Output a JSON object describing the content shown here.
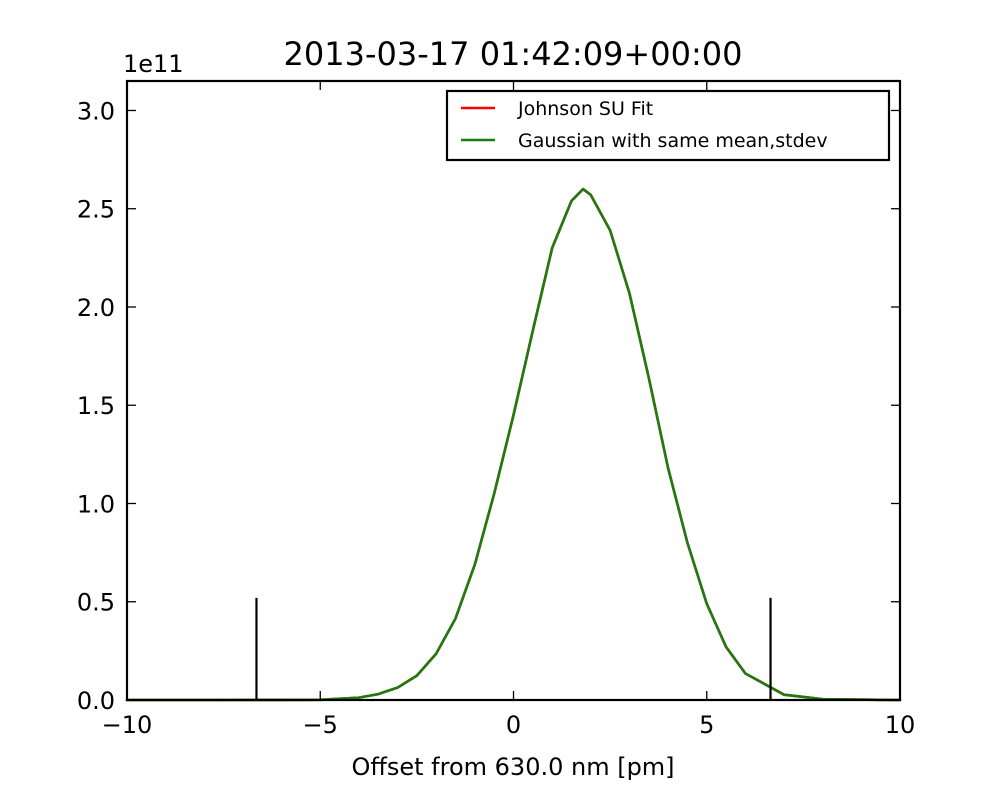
{
  "chart_data": {
    "type": "line",
    "title": "2013-03-17 01:42:09+00:00",
    "xlabel": "Offset from 630.0 nm [pm]",
    "ylabel": "",
    "y_offset_label": "1e11",
    "xlim": [
      -10,
      10
    ],
    "ylim": [
      0,
      3.15
    ],
    "y_scale_multiplier": 100000000000,
    "xticks": [
      -10,
      -5,
      0,
      5,
      10
    ],
    "xtick_labels": [
      "−10",
      "−5",
      "0",
      "5",
      "10"
    ],
    "yticks": [
      0.0,
      0.5,
      1.0,
      1.5,
      2.0,
      2.5,
      3.0
    ],
    "ytick_labels": [
      "0.0",
      "0.5",
      "1.0",
      "1.5",
      "2.0",
      "2.5",
      "3.0"
    ],
    "grid": false,
    "legend_position": "top-right",
    "series": [
      {
        "name": "Johnson SU Fit",
        "color": "#ff0000",
        "x": [
          -10,
          -8,
          -6,
          -5,
          -4,
          -3.5,
          -3,
          -2.5,
          -2,
          -1.5,
          -1,
          -0.5,
          0,
          0.5,
          1,
          1.5,
          1.8,
          2,
          2.5,
          3,
          3.5,
          4,
          4.5,
          5,
          5.5,
          6,
          7,
          8,
          10
        ],
        "y": [
          0,
          0,
          0.0001,
          0.001,
          0.012,
          0.03,
          0.063,
          0.124,
          0.236,
          0.415,
          0.69,
          1.05,
          1.45,
          1.88,
          2.3,
          2.54,
          2.6,
          2.57,
          2.39,
          2.07,
          1.64,
          1.18,
          0.8,
          0.49,
          0.27,
          0.135,
          0.027,
          0.004,
          0
        ]
      },
      {
        "name": "Gaussian with same mean,stdev",
        "color": "#1e7b12",
        "x": [
          -10,
          -8,
          -6,
          -5,
          -4,
          -3.5,
          -3,
          -2.5,
          -2,
          -1.5,
          -1,
          -0.5,
          0,
          0.5,
          1,
          1.5,
          1.8,
          2,
          2.5,
          3,
          3.5,
          4,
          4.5,
          5,
          5.5,
          6,
          7,
          8,
          10
        ],
        "y": [
          0,
          0,
          0.0001,
          0.001,
          0.012,
          0.03,
          0.063,
          0.124,
          0.236,
          0.415,
          0.69,
          1.05,
          1.45,
          1.88,
          2.3,
          2.54,
          2.6,
          2.57,
          2.39,
          2.07,
          1.64,
          1.18,
          0.8,
          0.49,
          0.27,
          0.135,
          0.027,
          0.004,
          0
        ]
      }
    ],
    "vertical_markers": [
      {
        "x": -6.65,
        "y_top": 0.52,
        "color": "#000000"
      },
      {
        "x": 6.65,
        "y_top": 0.52,
        "color": "#000000"
      }
    ]
  }
}
